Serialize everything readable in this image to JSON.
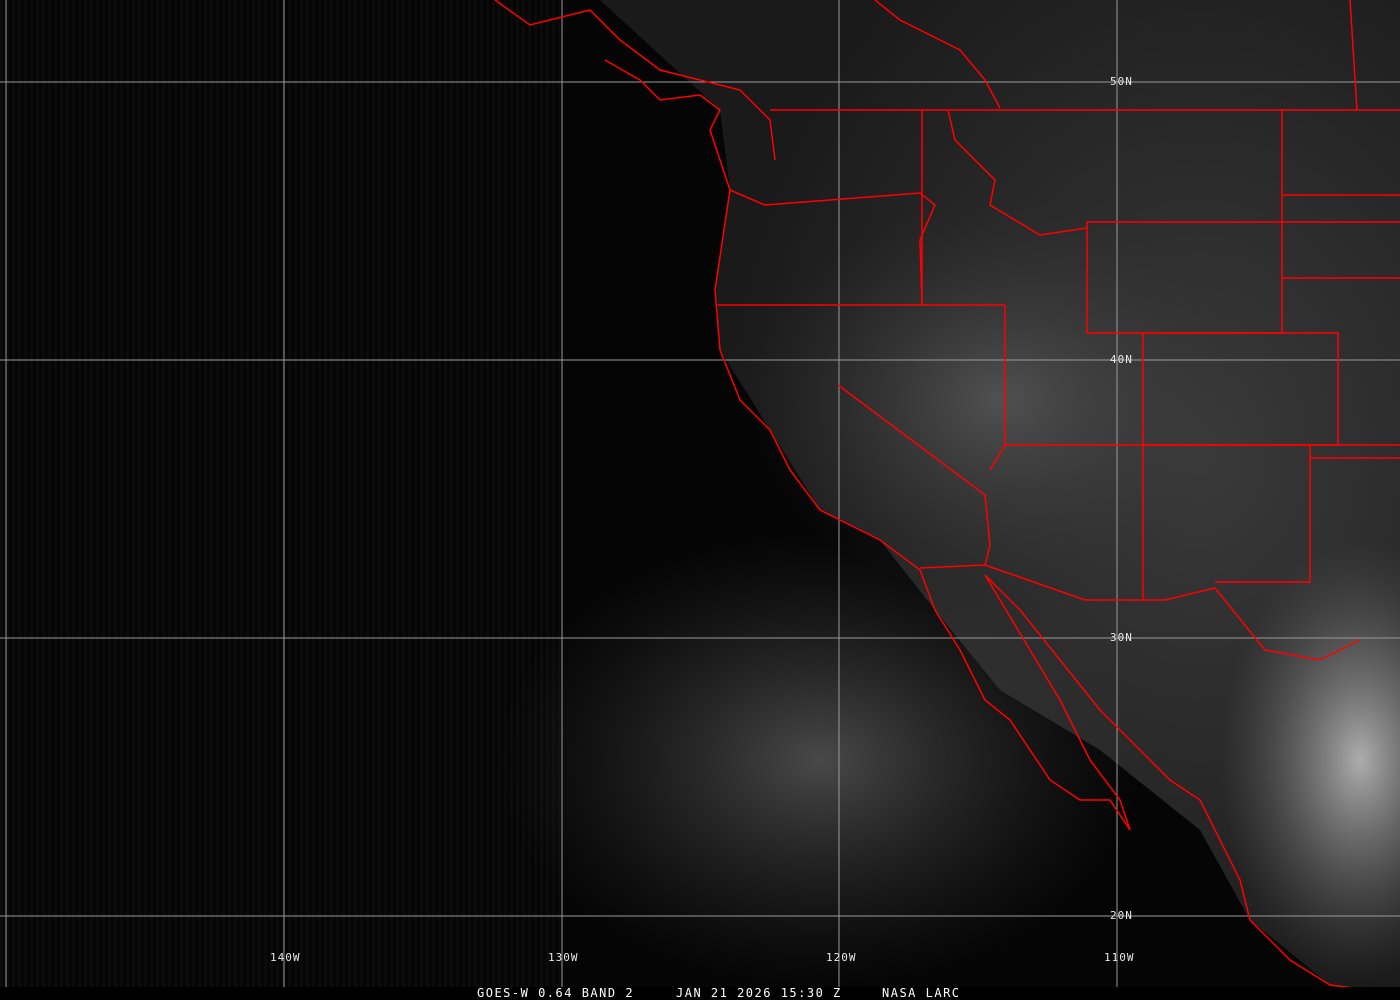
{
  "caption": {
    "product": "GOES-W 0.64 BAND 2",
    "datetime": "JAN 21 2026 15:30 Z",
    "source": "NASA LARC"
  },
  "lat_labels": [
    "50N",
    "40N",
    "30N",
    "20N"
  ],
  "lon_labels": [
    "140W",
    "130W",
    "120W",
    "110W"
  ],
  "colors": {
    "borders": "#ff0000",
    "grid": "#9a9a9a",
    "background": "#050505"
  }
}
